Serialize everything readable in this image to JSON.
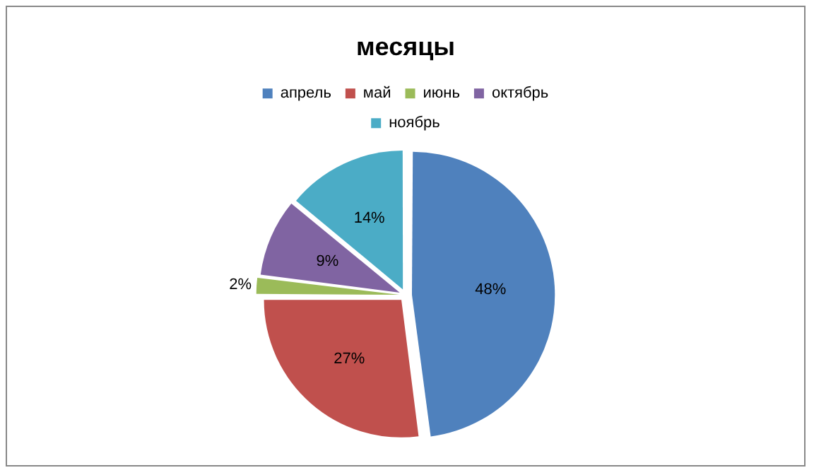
{
  "chart_data": {
    "type": "pie",
    "title": "месяцы",
    "categories": [
      "апрель",
      "май",
      "июнь",
      "октябрь",
      "ноябрь"
    ],
    "values": [
      48,
      27,
      2,
      9,
      14
    ],
    "colors": [
      "#4f81bd",
      "#c0504d",
      "#9bbb59",
      "#8064a2",
      "#4bacc6"
    ],
    "value_labels": [
      "48%",
      "27%",
      "2%",
      "9%",
      "14%"
    ],
    "legend": "top"
  }
}
